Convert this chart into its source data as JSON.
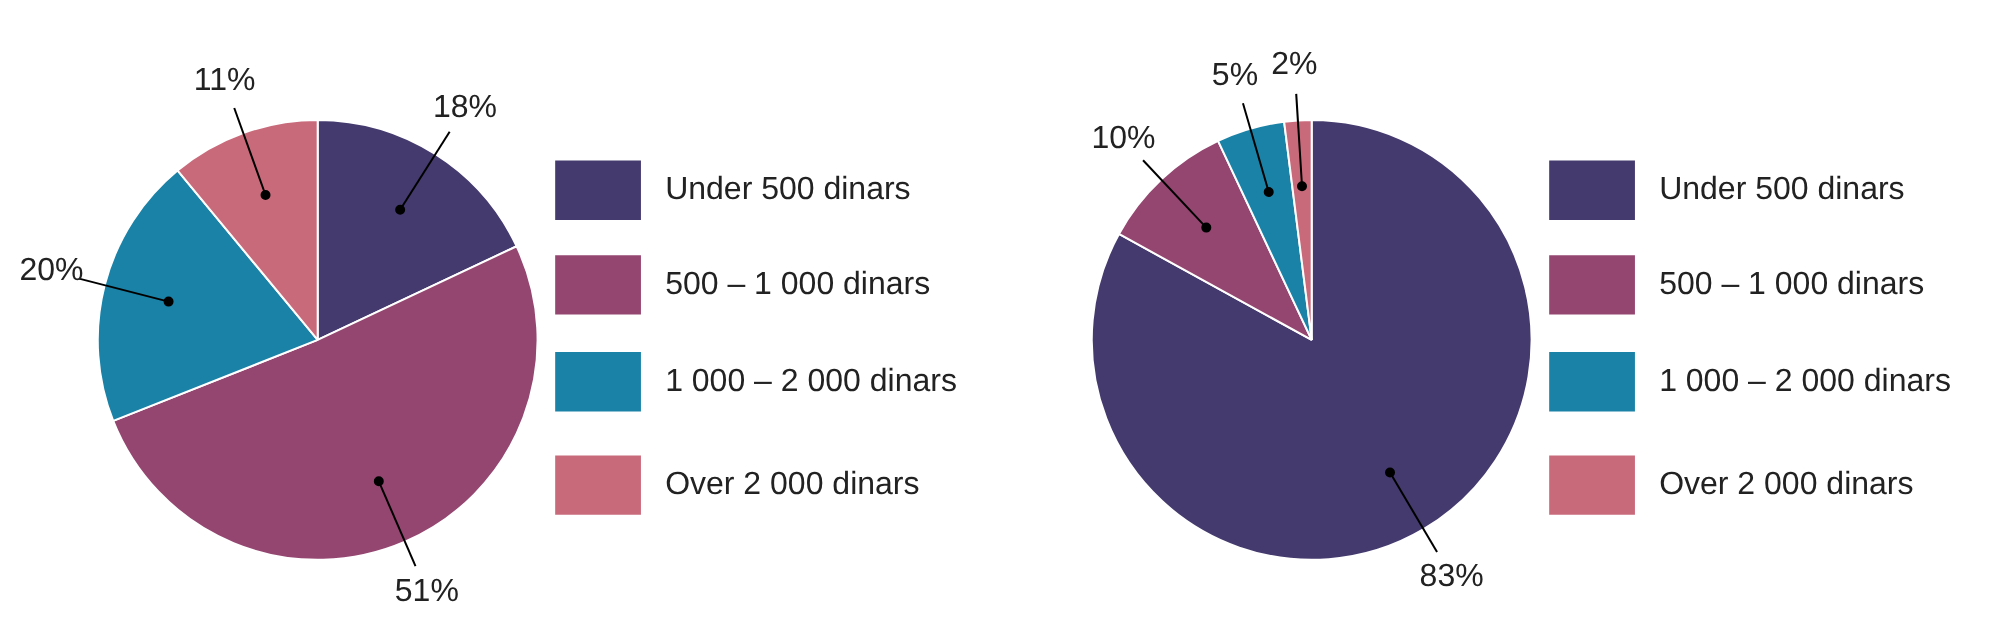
{
  "chart_data": [
    {
      "type": "pie",
      "categories": [
        "Under 500 dinars",
        "500 – 1 000 dinars",
        "1 000 – 2 000 dinars",
        "Over 2 000 dinars"
      ],
      "values": [
        18,
        51,
        20,
        11
      ],
      "value_labels": [
        "18%",
        "51%",
        "20%",
        "11%"
      ],
      "colors": [
        "#453a6e",
        "#944670",
        "#1a82a6",
        "#c96a7b"
      ],
      "legend": "right"
    },
    {
      "type": "pie",
      "categories": [
        "Under 500 dinars",
        "500 – 1 000 dinars",
        "1 000 – 2 000 dinars",
        "Over 2 000 dinars"
      ],
      "values": [
        83,
        10,
        5,
        2
      ],
      "value_labels": [
        "83%",
        "10%",
        "5%",
        "2%"
      ],
      "colors": [
        "#453a6e",
        "#944670",
        "#1a82a6",
        "#c96a7b"
      ],
      "legend": "right"
    }
  ]
}
